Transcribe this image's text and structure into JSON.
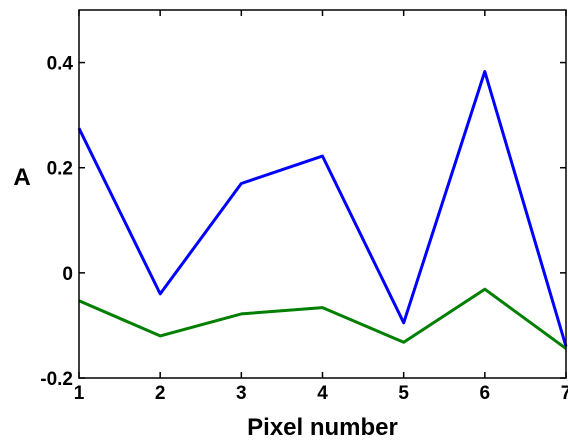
{
  "chart_data": {
    "type": "line",
    "title": "",
    "xlabel": "Pixel number",
    "ylabel": "A",
    "x": [
      1,
      2,
      3,
      4,
      5,
      6,
      7
    ],
    "xlim": [
      1,
      7
    ],
    "ylim": [
      -0.2,
      0.5
    ],
    "xticks": [
      "1",
      "2",
      "3",
      "4",
      "5",
      "6",
      "7"
    ],
    "yticks": [
      {
        "value": -0.2,
        "label": "-0.2"
      },
      {
        "value": 0,
        "label": "0"
      },
      {
        "value": 0.2,
        "label": "0.2"
      },
      {
        "value": 0.4,
        "label": "0.4"
      }
    ],
    "grid": false,
    "legend": "none",
    "series": [
      {
        "color": "#0000ff",
        "values": [
          0.275,
          -0.04,
          0.17,
          0.222,
          -0.095,
          0.383,
          -0.14
        ]
      },
      {
        "color": "#007f00",
        "values": [
          -0.053,
          -0.12,
          -0.078,
          -0.066,
          -0.132,
          -0.031,
          -0.144
        ]
      }
    ]
  }
}
